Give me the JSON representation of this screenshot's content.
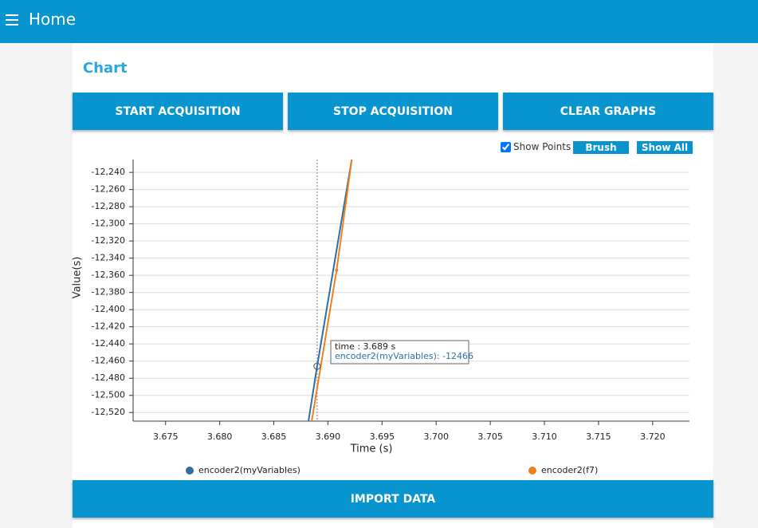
{
  "header": {
    "title": "Home"
  },
  "section": {
    "title": "Chart"
  },
  "buttons": [
    "START ACQUISITION",
    "STOP ACQUISITION",
    "CLEAR GRAPHS"
  ],
  "controls": {
    "show_points": "Show Points",
    "brush": "Brush",
    "show_all": "Show All"
  },
  "chart_data": {
    "type": "line",
    "xlabel": "Time (s)",
    "ylabel": "Value(s)",
    "xlim": [
      3.672,
      3.7234
    ],
    "ylim": [
      -12530,
      -12225
    ],
    "xticks": [
      3.675,
      {
        "value": 3.68,
        "label": "3.680"
      },
      3.685,
      {
        "value": 3.69,
        "label": "3.690"
      },
      3.695,
      {
        "value": 3.7,
        "label": "3.700"
      },
      3.705,
      {
        "value": 3.71,
        "label": "3.710"
      },
      3.715,
      {
        "value": 3.72,
        "label": "3.720"
      }
    ],
    "yticks": [
      {
        "value": -12240,
        "label": "-12,240"
      },
      {
        "value": -12260,
        "label": "-12,260"
      },
      {
        "value": -12280,
        "label": "-12,280"
      },
      {
        "value": -12300,
        "label": "-12,300"
      },
      {
        "value": -12320,
        "label": "-12,320"
      },
      {
        "value": -12340,
        "label": "-12,340"
      },
      {
        "value": -12360,
        "label": "-12,360"
      },
      {
        "value": -12380,
        "label": "-12,380"
      },
      {
        "value": -12400,
        "label": "-12,400"
      },
      {
        "value": -12420,
        "label": "-12,420"
      },
      {
        "value": -12440,
        "label": "-12,440"
      },
      {
        "value": -12460,
        "label": "-12,460"
      },
      {
        "value": -12480,
        "label": "-12,480"
      },
      {
        "value": -12500,
        "label": "-12,500"
      },
      {
        "value": -12520,
        "label": "-12,520"
      }
    ],
    "grid": true,
    "show_points": true,
    "series": [
      {
        "name": "encoder2(myVariables)",
        "color": "#2b6fa8",
        "x": [
          3.6882,
          3.689,
          3.6922
        ],
        "values": [
          -12530,
          -12466,
          -12225
        ]
      },
      {
        "name": "encoder2(f7)",
        "color": "#f07f1d",
        "x": [
          3.6885,
          3.6908,
          3.6922
        ],
        "values": [
          -12530,
          -12354,
          -12225
        ]
      }
    ],
    "tooltip": {
      "time": "time : 3.689 s",
      "value": "encoder2(myVariables): -12466"
    }
  },
  "footer_button": "IMPORT DATA"
}
